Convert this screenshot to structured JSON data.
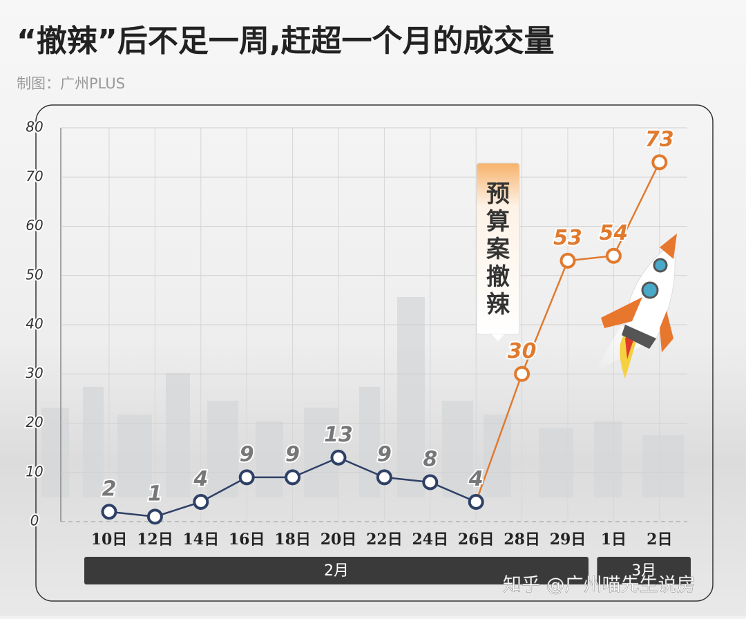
{
  "chart_data": {
    "type": "line",
    "title": "“撤辣”后不足一周,赶超一个月的成交量",
    "subtitle": "制图：广州PLUS",
    "annotation": "预算案撤辣",
    "watermark": "知乎 @广州喵先生说房",
    "categories": [
      "10日",
      "12日",
      "14日",
      "16日",
      "18日",
      "20日",
      "22日",
      "24日",
      "26日",
      "28日",
      "29日",
      "1日",
      "2日"
    ],
    "month_labels": [
      "2月",
      "3月"
    ],
    "values": [
      2,
      1,
      4,
      9,
      9,
      13,
      9,
      8,
      4,
      30,
      53,
      54,
      73
    ],
    "point_colors": [
      "#2e4066",
      "#2e4066",
      "#2e4066",
      "#2e4066",
      "#2e4066",
      "#2e4066",
      "#2e4066",
      "#2e4066",
      "#2e4066",
      "#e07a2e",
      "#e07a2e",
      "#e07a2e",
      "#e07a2e"
    ],
    "value_label_colors": [
      "#777777",
      "#777777",
      "#777777",
      "#777777",
      "#777777",
      "#777777",
      "#777777",
      "#777777",
      "#777777",
      "#e07a2e",
      "#e07a2e",
      "#e07a2e",
      "#e07a2e"
    ],
    "ylim": [
      0,
      80
    ],
    "yticks": [
      0,
      10,
      20,
      30,
      40,
      50,
      60,
      70,
      80
    ],
    "grid": true
  }
}
